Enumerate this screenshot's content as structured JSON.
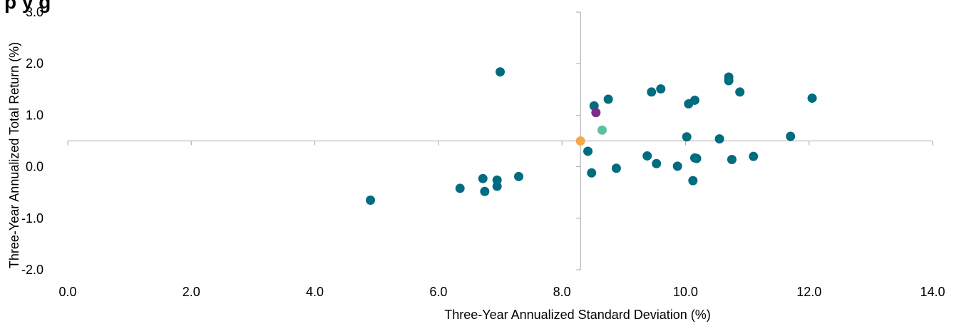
{
  "chart_data": {
    "type": "scatter",
    "title": "",
    "title_visible_fragment": "p                              y g",
    "xlabel": "Three-Year Annualized Standard Deviation (%)",
    "ylabel": "Three-Year Annualized Total Return (%)",
    "xlim": [
      0,
      14
    ],
    "ylim": [
      -2,
      3
    ],
    "x_ticks": [
      "0.0",
      "2.0",
      "4.0",
      "6.0",
      "8.0",
      "10.0",
      "12.0",
      "14.0"
    ],
    "y_ticks": [
      "3.0",
      "2.0",
      "1.0",
      "0.0",
      "-1.0",
      "-2.0"
    ],
    "axis_cross": {
      "x": 8.3,
      "y": 0.5
    },
    "grid": false,
    "legend": "none",
    "series": [
      {
        "color": "#006c7f",
        "points": [
          [
            4.9,
            -0.65
          ],
          [
            6.35,
            -0.42
          ],
          [
            6.72,
            -0.23
          ],
          [
            6.75,
            -0.48
          ],
          [
            6.95,
            -0.38
          ],
          [
            6.95,
            -0.26
          ],
          [
            7.0,
            1.84
          ],
          [
            7.3,
            -0.19
          ],
          [
            8.42,
            0.3
          ],
          [
            8.48,
            -0.12
          ],
          [
            8.52,
            1.18
          ],
          [
            8.75,
            1.31
          ],
          [
            8.88,
            -0.03
          ],
          [
            9.38,
            0.21
          ],
          [
            9.45,
            1.45
          ],
          [
            9.53,
            0.06
          ],
          [
            9.6,
            1.51
          ],
          [
            9.87,
            0.01
          ],
          [
            10.02,
            0.58
          ],
          [
            10.05,
            1.22
          ],
          [
            10.12,
            -0.27
          ],
          [
            10.15,
            1.29
          ],
          [
            10.15,
            0.17
          ],
          [
            10.18,
            0.16
          ],
          [
            10.55,
            0.54
          ],
          [
            10.7,
            1.74
          ],
          [
            10.7,
            1.67
          ],
          [
            10.75,
            0.14
          ],
          [
            10.88,
            1.45
          ],
          [
            11.1,
            0.2
          ],
          [
            11.7,
            0.59
          ],
          [
            12.05,
            1.33
          ]
        ]
      },
      {
        "color": "#7b2d8e",
        "points": [
          [
            8.55,
            1.05
          ]
        ]
      },
      {
        "color": "#5dbf9e",
        "points": [
          [
            8.65,
            0.71
          ]
        ]
      },
      {
        "color": "#f5a84a",
        "points": [
          [
            8.3,
            0.5
          ]
        ]
      }
    ]
  }
}
